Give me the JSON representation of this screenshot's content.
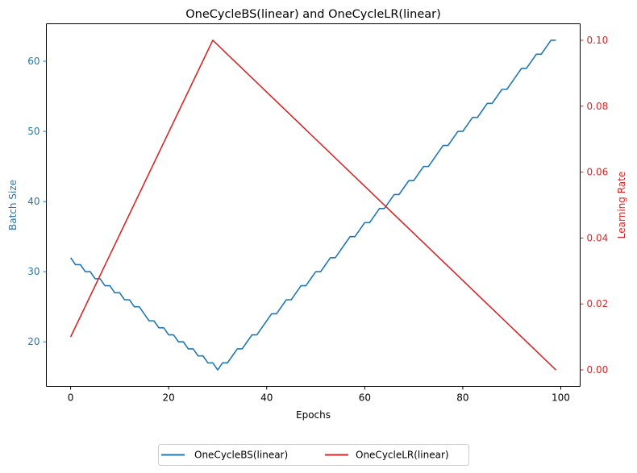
{
  "chart_data": {
    "type": "line",
    "title": "OneCycleBS(linear) and OneCycleLR(linear)",
    "xlabel": "Epochs",
    "ylabel_left": "Batch Size",
    "ylabel_right": "Learning Rate",
    "xlim": [
      -4.95,
      103.95
    ],
    "ylim_left": [
      13.65,
      65.35
    ],
    "ylim_right": [
      -0.005,
      0.105
    ],
    "x_ticks": [
      0,
      20,
      40,
      60,
      80,
      100
    ],
    "y_left_ticks": [
      20,
      30,
      40,
      50,
      60
    ],
    "y_right_ticks": [
      0.0,
      0.02,
      0.04,
      0.06,
      0.08,
      0.1
    ],
    "x_tick_labels": [
      "0",
      "20",
      "40",
      "60",
      "80",
      "100"
    ],
    "y_left_tick_labels": [
      "20",
      "30",
      "40",
      "50",
      "60"
    ],
    "y_right_tick_labels": [
      "0.00",
      "0.02",
      "0.04",
      "0.06",
      "0.08",
      "0.10"
    ],
    "legend_placement": "below plot, centered",
    "grid": false,
    "colors": {
      "left_axis": "#1f77b4",
      "right_axis": "#d62728"
    },
    "series": [
      {
        "name": "OneCycleBS(linear)",
        "axis": "left",
        "color": "#1f77b4",
        "x": [
          0,
          1,
          2,
          3,
          4,
          5,
          6,
          7,
          8,
          9,
          10,
          11,
          12,
          13,
          14,
          15,
          16,
          17,
          18,
          19,
          20,
          21,
          22,
          23,
          24,
          25,
          26,
          27,
          28,
          29,
          30,
          31,
          32,
          33,
          34,
          35,
          36,
          37,
          38,
          39,
          40,
          41,
          42,
          43,
          44,
          45,
          46,
          47,
          48,
          49,
          50,
          51,
          52,
          53,
          54,
          55,
          56,
          57,
          58,
          59,
          60,
          61,
          62,
          63,
          64,
          65,
          66,
          67,
          68,
          69,
          70,
          71,
          72,
          73,
          74,
          75,
          76,
          77,
          78,
          79,
          80,
          81,
          82,
          83,
          84,
          85,
          86,
          87,
          88,
          89,
          90,
          91,
          92,
          93,
          94,
          95,
          96,
          97,
          98,
          99
        ],
        "values": [
          32,
          31,
          31,
          30,
          30,
          29,
          29,
          28,
          28,
          27,
          27,
          26,
          26,
          25,
          25,
          24,
          23,
          23,
          22,
          22,
          21,
          21,
          20,
          20,
          19,
          19,
          18,
          18,
          17,
          17,
          16,
          17,
          17,
          18,
          19,
          19,
          20,
          21,
          21,
          22,
          23,
          24,
          24,
          25,
          26,
          26,
          27,
          28,
          28,
          29,
          30,
          30,
          31,
          32,
          32,
          33,
          34,
          35,
          35,
          36,
          37,
          37,
          38,
          39,
          39,
          40,
          41,
          41,
          42,
          43,
          43,
          44,
          45,
          45,
          46,
          47,
          48,
          48,
          49,
          50,
          50,
          51,
          52,
          52,
          53,
          54,
          54,
          55,
          56,
          56,
          57,
          58,
          59,
          59,
          60,
          61,
          61,
          62,
          63,
          63
        ]
      },
      {
        "name": "OneCycleLR(linear)",
        "axis": "right",
        "color": "#d62728",
        "x": [
          0,
          29,
          99
        ],
        "values": [
          0.01,
          0.1,
          0.0
        ]
      }
    ]
  }
}
